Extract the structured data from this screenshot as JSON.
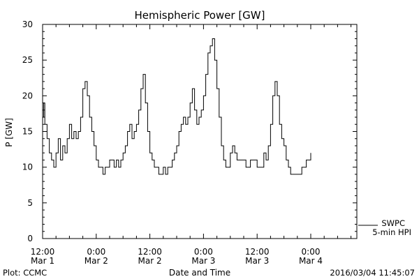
{
  "footer": {
    "plot_credit": "Plot: CCMC",
    "timestamp": "2016/03/04 11:45:07"
  },
  "legend": {
    "source": "SWPC",
    "product": "5-min HPI"
  },
  "chart_data": {
    "type": "line",
    "title": "Hemispheric Power [GW]",
    "xlabel": "Date and Time",
    "ylabel": "P [GW]",
    "ylim": [
      0,
      30
    ],
    "y_ticks": [
      "0",
      "5",
      "10",
      "15",
      "20",
      "25",
      "30"
    ],
    "x_range_hours": [
      0,
      60
    ],
    "x_ticks": [
      {
        "hours": 0,
        "time": "12:00",
        "date": "Mar 1"
      },
      {
        "hours": 12,
        "time": "0:00",
        "date": "Mar 2"
      },
      {
        "hours": 24,
        "time": "12:00",
        "date": "Mar 2"
      },
      {
        "hours": 36,
        "time": "0:00",
        "date": "Mar 3"
      },
      {
        "hours": 48,
        "time": "12:00",
        "date": "Mar 3"
      },
      {
        "hours": 60,
        "time": "0:00",
        "date": "Mar 4"
      }
    ],
    "grid": false,
    "legend_position": "bottom-right outside",
    "series": [
      {
        "name": "SWPC 5-min HPI",
        "color": "#000000",
        "points": [
          [
            0.0,
            17
          ],
          [
            0.25,
            19
          ],
          [
            0.5,
            16
          ],
          [
            1.0,
            14
          ],
          [
            1.5,
            12
          ],
          [
            2.0,
            11
          ],
          [
            2.5,
            10
          ],
          [
            3.0,
            12
          ],
          [
            3.5,
            14
          ],
          [
            4.0,
            11
          ],
          [
            4.5,
            13
          ],
          [
            5.0,
            12
          ],
          [
            5.5,
            14
          ],
          [
            6.0,
            16
          ],
          [
            6.5,
            14
          ],
          [
            7.0,
            15
          ],
          [
            7.5,
            14
          ],
          [
            8.0,
            15
          ],
          [
            8.5,
            17
          ],
          [
            9.0,
            21
          ],
          [
            9.5,
            22
          ],
          [
            10.0,
            20
          ],
          [
            10.5,
            17
          ],
          [
            11.0,
            15
          ],
          [
            11.5,
            13
          ],
          [
            12.0,
            11
          ],
          [
            12.5,
            10
          ],
          [
            13.0,
            10
          ],
          [
            13.5,
            9
          ],
          [
            14.0,
            10
          ],
          [
            14.5,
            10
          ],
          [
            15.0,
            11
          ],
          [
            15.5,
            11
          ],
          [
            16.0,
            10
          ],
          [
            16.5,
            11
          ],
          [
            17.0,
            10
          ],
          [
            17.5,
            11
          ],
          [
            18.0,
            12
          ],
          [
            18.5,
            13
          ],
          [
            19.0,
            15
          ],
          [
            19.5,
            16
          ],
          [
            20.0,
            14
          ],
          [
            20.5,
            15
          ],
          [
            21.0,
            16
          ],
          [
            21.5,
            18
          ],
          [
            22.0,
            21
          ],
          [
            22.5,
            23
          ],
          [
            23.0,
            19
          ],
          [
            23.5,
            15
          ],
          [
            24.0,
            12
          ],
          [
            24.5,
            11
          ],
          [
            25.0,
            10
          ],
          [
            25.5,
            10
          ],
          [
            26.0,
            9
          ],
          [
            26.5,
            9
          ],
          [
            27.0,
            10
          ],
          [
            27.5,
            9
          ],
          [
            28.0,
            10
          ],
          [
            28.5,
            10
          ],
          [
            29.0,
            11
          ],
          [
            29.5,
            12
          ],
          [
            30.0,
            13
          ],
          [
            30.5,
            15
          ],
          [
            31.0,
            16
          ],
          [
            31.5,
            17
          ],
          [
            32.0,
            16
          ],
          [
            32.5,
            17
          ],
          [
            33.0,
            19
          ],
          [
            33.5,
            21
          ],
          [
            34.0,
            18
          ],
          [
            34.5,
            16
          ],
          [
            35.0,
            17
          ],
          [
            35.5,
            18
          ],
          [
            36.0,
            20
          ],
          [
            36.5,
            23
          ],
          [
            37.0,
            26
          ],
          [
            37.5,
            27
          ],
          [
            38.0,
            28
          ],
          [
            38.5,
            25
          ],
          [
            39.0,
            21
          ],
          [
            39.5,
            17
          ],
          [
            40.0,
            13
          ],
          [
            40.5,
            11
          ],
          [
            41.0,
            10
          ],
          [
            41.5,
            10
          ],
          [
            42.0,
            12
          ],
          [
            42.5,
            13
          ],
          [
            43.0,
            12
          ],
          [
            43.5,
            11
          ],
          [
            44.0,
            11
          ],
          [
            44.5,
            11
          ],
          [
            45.0,
            11
          ],
          [
            45.5,
            10
          ],
          [
            46.0,
            10
          ],
          [
            46.5,
            11
          ],
          [
            47.0,
            11
          ],
          [
            47.5,
            11
          ],
          [
            48.0,
            10
          ],
          [
            48.5,
            10
          ],
          [
            49.0,
            10
          ],
          [
            49.5,
            12
          ],
          [
            50.0,
            11
          ],
          [
            50.5,
            13
          ],
          [
            51.0,
            16
          ],
          [
            51.5,
            20
          ],
          [
            52.0,
            22
          ],
          [
            52.5,
            20
          ],
          [
            53.0,
            16
          ],
          [
            53.5,
            14
          ],
          [
            54.0,
            13
          ],
          [
            54.5,
            11
          ],
          [
            55.0,
            10
          ],
          [
            55.5,
            9
          ],
          [
            56.0,
            9
          ],
          [
            56.5,
            9
          ],
          [
            57.0,
            9
          ],
          [
            57.5,
            9
          ],
          [
            58.0,
            10
          ],
          [
            58.5,
            10
          ],
          [
            59.0,
            11
          ],
          [
            59.5,
            11
          ],
          [
            60.0,
            12
          ]
        ]
      }
    ]
  }
}
